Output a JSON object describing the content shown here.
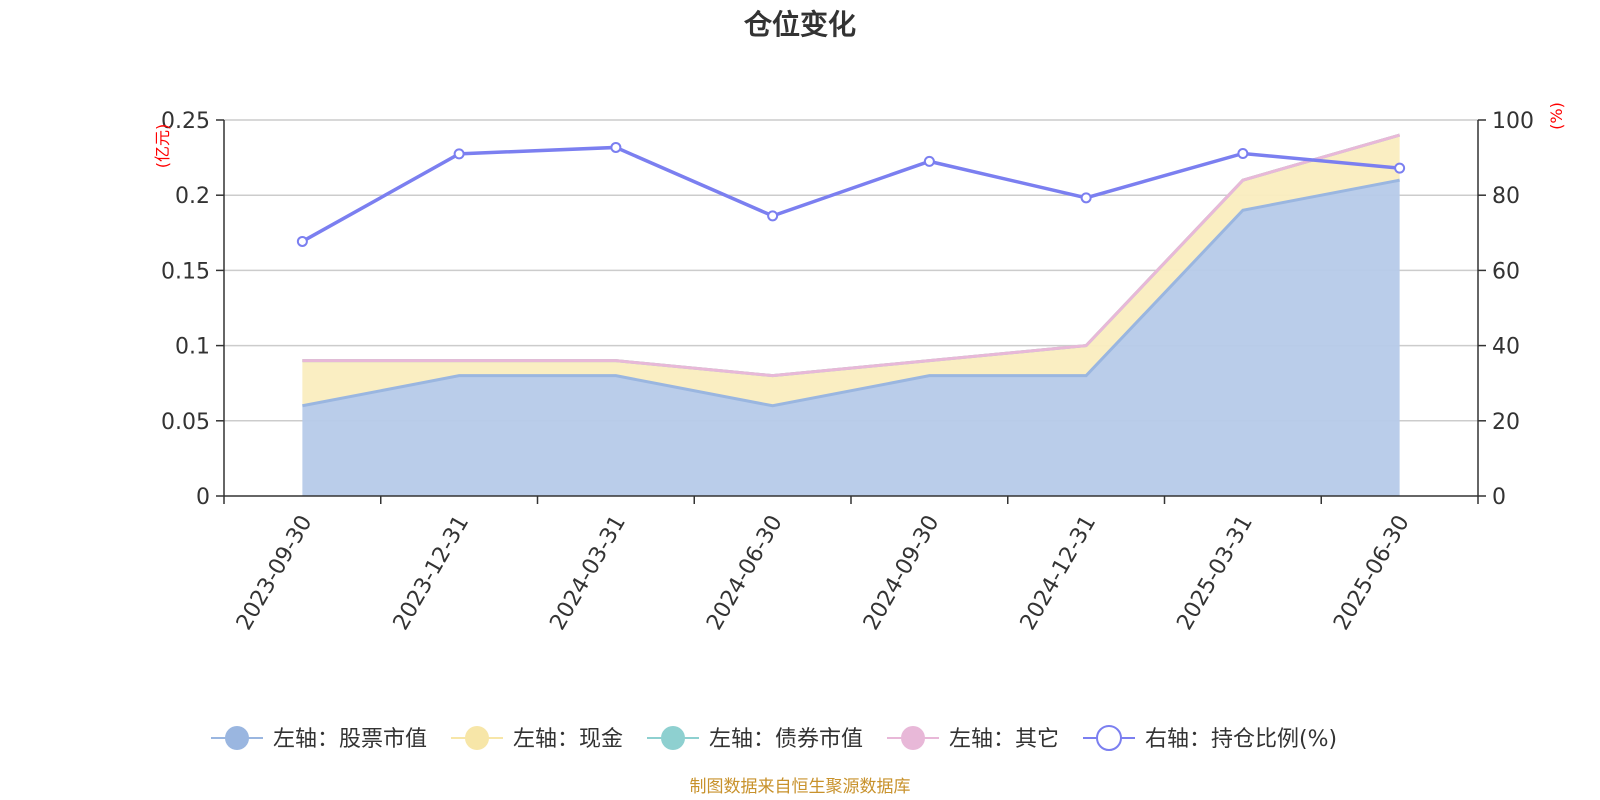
{
  "chart_data": {
    "type": "area",
    "title": "仓位变化",
    "categories": [
      "2023-09-30",
      "2023-12-31",
      "2024-03-31",
      "2024-06-30",
      "2024-09-30",
      "2024-12-31",
      "2025-03-31",
      "2025-06-30"
    ],
    "left_axis": {
      "unit": "(亿元)",
      "min": 0,
      "max": 0.25,
      "ticks": [
        "0",
        "0.05",
        "0.1",
        "0.15",
        "0.2",
        "0.25"
      ]
    },
    "right_axis": {
      "unit": "(%)",
      "min": 0,
      "max": 100,
      "ticks": [
        "0",
        "20",
        "40",
        "60",
        "80",
        "100"
      ]
    },
    "stacked": true,
    "series": [
      {
        "name": "左轴：股票市值",
        "axis": "left",
        "kind": "area",
        "color": "#9ab6e0",
        "fill": "#b6cae9",
        "values": [
          0.06,
          0.08,
          0.08,
          0.06,
          0.08,
          0.08,
          0.19,
          0.21
        ]
      },
      {
        "name": "左轴：现金",
        "axis": "left",
        "kind": "area",
        "color": "#f7e6a8",
        "fill": "#faedbf",
        "values": [
          0.03,
          0.01,
          0.01,
          0.02,
          0.01,
          0.02,
          0.02,
          0.03
        ]
      },
      {
        "name": "左轴：债券市值",
        "axis": "left",
        "kind": "area",
        "color": "#8ed0d0",
        "fill": "#a8dbdb",
        "values": [
          0,
          0,
          0,
          0,
          0,
          0,
          0,
          0
        ]
      },
      {
        "name": "左轴：其它",
        "axis": "left",
        "kind": "area",
        "color": "#e8b8d8",
        "fill": "#f0cfe4",
        "values": [
          0,
          0,
          0,
          0,
          0,
          0,
          0,
          0
        ]
      },
      {
        "name": "右轴：持仓比例(%)",
        "axis": "right",
        "kind": "line",
        "color": "#7b7ff0",
        "values": [
          67.7,
          91.0,
          92.7,
          74.5,
          89.0,
          79.3,
          91.1,
          87.2
        ]
      }
    ],
    "grid": true,
    "legend_position": "bottom"
  },
  "source_note": "制图数据来自恒生聚源数据库"
}
